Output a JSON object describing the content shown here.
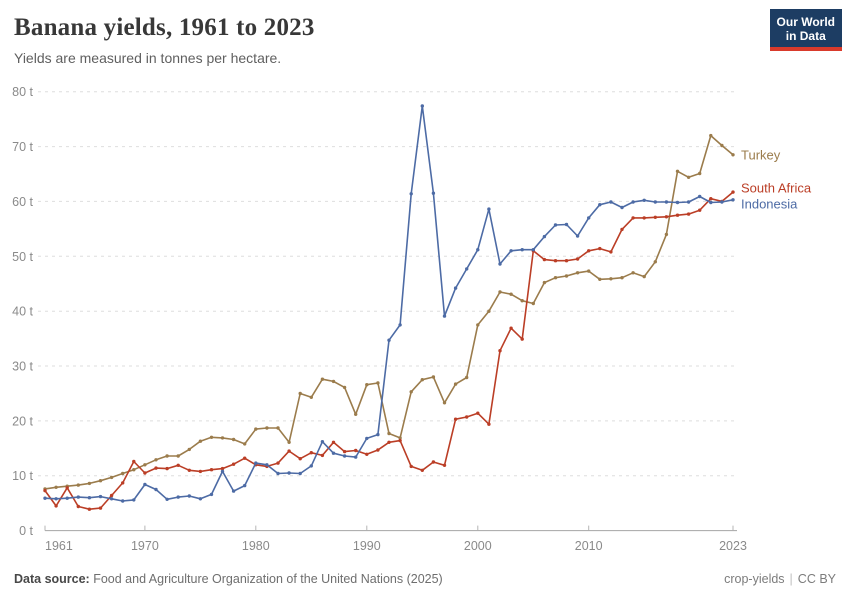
{
  "header": {
    "title": "Banana yields, 1961 to 2023",
    "subtitle": "Yields are measured in tonnes per hectare."
  },
  "logo": {
    "line1": "Our World",
    "line2": "in Data",
    "bg": "#1d3d63",
    "accent": "#d93a2b"
  },
  "footer": {
    "source_label": "Data source:",
    "source_text": " Food and Agriculture Organization of the United Nations (2025)",
    "attribution": "crop-yields",
    "separator": "|",
    "license": "CC BY"
  },
  "chart_data": {
    "type": "line",
    "title": "Banana yields, 1961 to 2023",
    "subtitle": "Yields are measured in tonnes per hectare.",
    "ylabel_suffix": " t",
    "ylim": [
      0,
      80
    ],
    "xlim": [
      1961,
      2023
    ],
    "yticks": [
      0,
      10,
      20,
      30,
      40,
      50,
      60,
      70,
      80
    ],
    "xticks": [
      1961,
      1970,
      1980,
      1990,
      2000,
      2010,
      2023
    ],
    "grid": "dashed-horizontal",
    "legend_position": "end-of-line",
    "x": [
      1961,
      1962,
      1963,
      1964,
      1965,
      1966,
      1967,
      1968,
      1969,
      1970,
      1971,
      1972,
      1973,
      1974,
      1975,
      1976,
      1977,
      1978,
      1979,
      1980,
      1981,
      1982,
      1983,
      1984,
      1985,
      1986,
      1987,
      1988,
      1989,
      1990,
      1991,
      1992,
      1993,
      1994,
      1995,
      1996,
      1997,
      1998,
      1999,
      2000,
      2001,
      2002,
      2003,
      2004,
      2005,
      2006,
      2007,
      2008,
      2009,
      2010,
      2011,
      2012,
      2013,
      2014,
      2015,
      2016,
      2017,
      2018,
      2019,
      2020,
      2021,
      2022,
      2023
    ],
    "series": [
      {
        "name": "Turkey",
        "color": "#9b7c4c",
        "values": [
          7.6,
          7.9,
          8.1,
          8.3,
          8.6,
          9.1,
          9.7,
          10.4,
          11.1,
          12.0,
          12.9,
          13.6,
          13.6,
          14.8,
          16.3,
          17.0,
          16.9,
          16.6,
          15.8,
          18.5,
          18.7,
          18.7,
          16.1,
          25.0,
          24.3,
          27.6,
          27.2,
          26.1,
          21.2,
          26.6,
          26.9,
          17.7,
          16.9,
          25.3,
          27.5,
          28.0,
          23.3,
          26.7,
          27.9,
          37.5,
          40.0,
          43.5,
          43.1,
          41.9,
          41.4,
          45.2,
          46.1,
          46.4,
          47.0,
          47.3,
          45.8,
          45.9,
          46.1,
          47.0,
          46.3,
          49.0,
          54.0,
          65.5,
          64.4,
          65.1,
          72.0,
          70.2,
          68.5
        ]
      },
      {
        "name": "South Africa",
        "color": "#bb3e26",
        "values": [
          7.3,
          4.5,
          7.8,
          4.4,
          3.9,
          4.1,
          6.4,
          8.7,
          12.6,
          10.5,
          11.4,
          11.3,
          11.9,
          11.0,
          10.8,
          11.1,
          11.3,
          12.1,
          13.2,
          12.0,
          11.7,
          12.3,
          14.5,
          13.1,
          14.2,
          13.7,
          16.1,
          14.4,
          14.6,
          13.9,
          14.7,
          16.1,
          16.4,
          11.7,
          11.0,
          12.5,
          11.9,
          20.3,
          20.7,
          21.4,
          19.4,
          32.8,
          36.9,
          34.9,
          51.0,
          49.4,
          49.2,
          49.2,
          49.5,
          51.0,
          51.4,
          50.8,
          54.9,
          57.0,
          57.0,
          57.1,
          57.2,
          57.5,
          57.7,
          58.4,
          60.5,
          60.0,
          61.7
        ]
      },
      {
        "name": "Indonesia",
        "color": "#4d6ba5",
        "values": [
          5.9,
          5.8,
          5.9,
          6.1,
          6.0,
          6.2,
          5.8,
          5.4,
          5.6,
          8.4,
          7.5,
          5.7,
          6.1,
          6.3,
          5.8,
          6.6,
          10.8,
          7.2,
          8.2,
          12.3,
          12.0,
          10.4,
          10.5,
          10.4,
          11.8,
          16.2,
          14.1,
          13.6,
          13.4,
          16.8,
          17.5,
          34.7,
          37.5,
          61.4,
          77.4,
          61.5,
          39.1,
          44.2,
          47.7,
          51.2,
          58.6,
          48.6,
          51.0,
          51.2,
          51.2,
          53.6,
          55.7,
          55.8,
          53.7,
          57.0,
          59.4,
          59.9,
          58.9,
          59.9,
          60.2,
          59.9,
          59.9,
          59.8,
          59.9,
          60.9,
          59.8,
          59.9,
          60.3
        ]
      }
    ]
  }
}
